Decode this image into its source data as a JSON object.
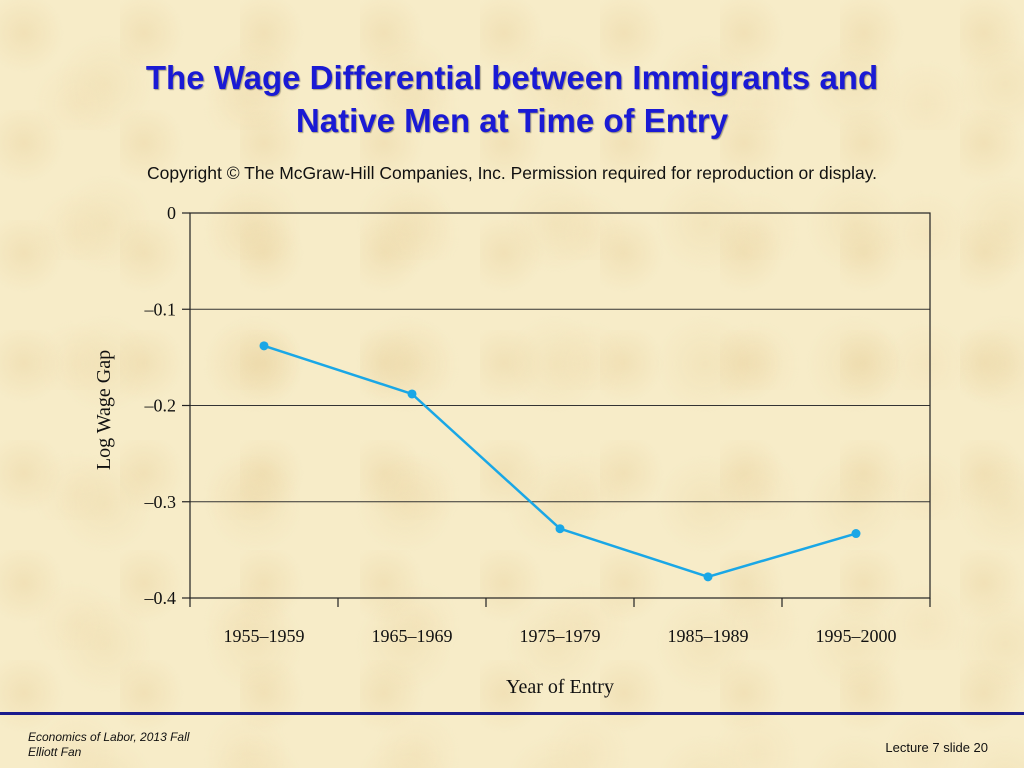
{
  "slide": {
    "title_line1": "The Wage Differential between Immigrants and",
    "title_line2": "Native Men at Time of Entry",
    "copyright": "Copyright © The McGraw-Hill Companies, Inc. Permission required for reproduction or display."
  },
  "footer": {
    "course": "Economics of Labor, 2013 Fall",
    "author": "Elliott Fan",
    "slide_number": "Lecture 7 slide 20"
  },
  "colors": {
    "title": "#1a1ad4",
    "series": "#1aa7e6",
    "footer_rule": "#1a1a8c"
  },
  "chart_data": {
    "type": "line",
    "title": "",
    "xlabel": "Year of Entry",
    "ylabel": "Log Wage Gap",
    "categories": [
      "1955–1959",
      "1965–1969",
      "1975–1979",
      "1985–1989",
      "1995–2000"
    ],
    "series": [
      {
        "values": [
          -0.138,
          -0.188,
          -0.328,
          -0.378,
          -0.333
        ]
      }
    ],
    "ylim": [
      -0.4,
      0
    ],
    "yticks": [
      0,
      -0.1,
      -0.2,
      -0.3,
      -0.4
    ],
    "ytick_labels": [
      "0",
      "–0.1",
      "–0.2",
      "–0.3",
      "–0.4"
    ],
    "grid": "horizontal"
  }
}
